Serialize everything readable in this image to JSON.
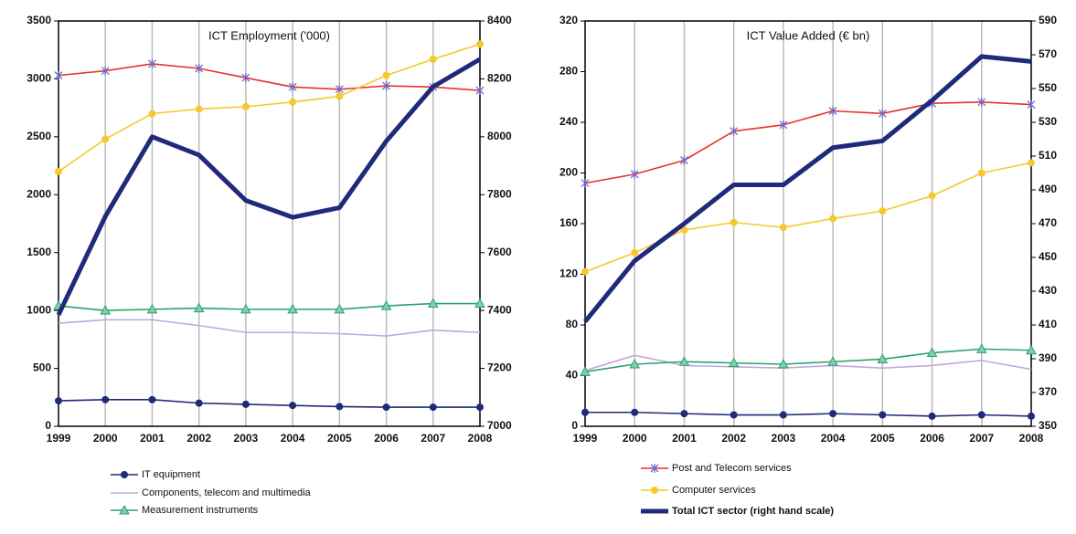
{
  "chart_data": [
    {
      "type": "line",
      "title": "ICT Employment ('000)",
      "categories": [
        "1999",
        "2000",
        "2001",
        "2002",
        "2003",
        "2004",
        "2005",
        "2006",
        "2007",
        "2008"
      ],
      "ylim": [
        0,
        3500
      ],
      "yticks": [
        0,
        500,
        1000,
        1500,
        2000,
        2500,
        3000,
        3500
      ],
      "y2lim": [
        7000,
        8400
      ],
      "y2ticks": [
        7000,
        7200,
        7400,
        7600,
        7800,
        8000,
        8200,
        8400
      ],
      "grid": "x",
      "series": [
        {
          "name": "IT equipment",
          "color": "#1f2a7a",
          "marker": "circle",
          "values": [
            220,
            230,
            230,
            200,
            190,
            180,
            170,
            165,
            165,
            165
          ]
        },
        {
          "name": "Components, telecom and multimedia",
          "color": "#c3a8dc",
          "values": [
            890,
            920,
            920,
            870,
            810,
            810,
            800,
            780,
            830,
            810
          ]
        },
        {
          "name": "Measurement instruments",
          "color": "#2aa070",
          "marker": "triangle",
          "values": [
            1040,
            1000,
            1010,
            1020,
            1010,
            1010,
            1010,
            1040,
            1060,
            1060
          ]
        },
        {
          "color": "#e8302a",
          "marker": "star",
          "marker_color": "#6a6ad0",
          "values": [
            3030,
            3070,
            3130,
            3090,
            3010,
            2930,
            2910,
            2940,
            2930,
            2900
          ]
        },
        {
          "color": "#f6c830",
          "marker": "circle",
          "values": [
            2200,
            2480,
            2700,
            2740,
            2760,
            2800,
            2850,
            3030,
            3170,
            3300
          ]
        },
        {
          "color": "#1f2a7a",
          "axis": "y2",
          "values": [
            7385,
            7725,
            8000,
            7937,
            7780,
            7722,
            7755,
            7985,
            8173,
            8268
          ]
        }
      ]
    },
    {
      "type": "line",
      "title": "ICT Value Added (€ bn)",
      "categories": [
        "1999",
        "2000",
        "2001",
        "2002",
        "2003",
        "2004",
        "2005",
        "2006",
        "2007",
        "2008"
      ],
      "ylim": [
        0,
        320
      ],
      "yticks": [
        0,
        40,
        80,
        120,
        160,
        200,
        240,
        280,
        320
      ],
      "y2lim": [
        350,
        590
      ],
      "y2ticks": [
        350,
        370,
        390,
        410,
        430,
        450,
        470,
        490,
        510,
        530,
        550,
        570,
        590
      ],
      "grid": "x",
      "series": [
        {
          "color": "#1f2a7a",
          "marker": "circle",
          "values": [
            11,
            11,
            10,
            9,
            9,
            10,
            9,
            8,
            9,
            8
          ]
        },
        {
          "color": "#c3a8dc",
          "values": [
            44,
            56,
            48,
            47,
            46,
            48,
            46,
            48,
            52,
            45
          ]
        },
        {
          "color": "#2aa070",
          "marker": "triangle",
          "values": [
            43,
            49,
            51,
            50,
            49,
            51,
            53,
            58,
            61,
            60
          ]
        },
        {
          "name": "Post and Telecom services",
          "color": "#e8302a",
          "marker": "star",
          "marker_color": "#6a6ad0",
          "values": [
            192,
            199,
            210,
            233,
            238,
            249,
            247,
            255,
            256,
            254
          ]
        },
        {
          "name": "Computer services",
          "color": "#f6c830",
          "marker": "circle",
          "values": [
            122,
            137,
            155,
            161,
            157,
            164,
            170,
            182,
            200,
            208
          ]
        },
        {
          "name": "Total ICT sector (right hand scale)",
          "color": "#1f2a7a",
          "axis": "y2",
          "values": [
            412,
            448,
            470,
            493,
            493,
            515,
            519,
            543,
            569,
            566
          ]
        }
      ]
    }
  ]
}
